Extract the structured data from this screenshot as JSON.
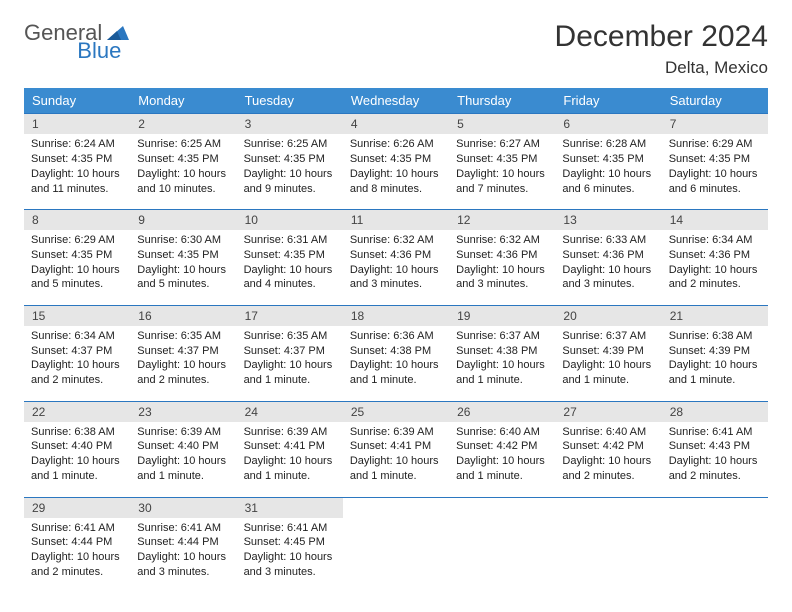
{
  "logo": {
    "text1": "General",
    "text2": "Blue"
  },
  "title": "December 2024",
  "location": "Delta, Mexico",
  "colors": {
    "header_bg": "#3a8bd0",
    "header_fg": "#ffffff",
    "daynum_bg": "#e6e6e6",
    "rule": "#2b77c0",
    "logo_blue": "#2b77c0",
    "text": "#222222",
    "page_bg": "#ffffff"
  },
  "typography": {
    "month_fontsize": 30,
    "location_fontsize": 17,
    "dayhdr_fontsize": 13,
    "daynum_fontsize": 12,
    "body_fontsize": 11
  },
  "day_headers": [
    "Sunday",
    "Monday",
    "Tuesday",
    "Wednesday",
    "Thursday",
    "Friday",
    "Saturday"
  ],
  "weeks": [
    [
      {
        "n": "1",
        "sunrise": "6:24 AM",
        "sunset": "4:35 PM",
        "daylight": "10 hours and 11 minutes."
      },
      {
        "n": "2",
        "sunrise": "6:25 AM",
        "sunset": "4:35 PM",
        "daylight": "10 hours and 10 minutes."
      },
      {
        "n": "3",
        "sunrise": "6:25 AM",
        "sunset": "4:35 PM",
        "daylight": "10 hours and 9 minutes."
      },
      {
        "n": "4",
        "sunrise": "6:26 AM",
        "sunset": "4:35 PM",
        "daylight": "10 hours and 8 minutes."
      },
      {
        "n": "5",
        "sunrise": "6:27 AM",
        "sunset": "4:35 PM",
        "daylight": "10 hours and 7 minutes."
      },
      {
        "n": "6",
        "sunrise": "6:28 AM",
        "sunset": "4:35 PM",
        "daylight": "10 hours and 6 minutes."
      },
      {
        "n": "7",
        "sunrise": "6:29 AM",
        "sunset": "4:35 PM",
        "daylight": "10 hours and 6 minutes."
      }
    ],
    [
      {
        "n": "8",
        "sunrise": "6:29 AM",
        "sunset": "4:35 PM",
        "daylight": "10 hours and 5 minutes."
      },
      {
        "n": "9",
        "sunrise": "6:30 AM",
        "sunset": "4:35 PM",
        "daylight": "10 hours and 5 minutes."
      },
      {
        "n": "10",
        "sunrise": "6:31 AM",
        "sunset": "4:35 PM",
        "daylight": "10 hours and 4 minutes."
      },
      {
        "n": "11",
        "sunrise": "6:32 AM",
        "sunset": "4:36 PM",
        "daylight": "10 hours and 3 minutes."
      },
      {
        "n": "12",
        "sunrise": "6:32 AM",
        "sunset": "4:36 PM",
        "daylight": "10 hours and 3 minutes."
      },
      {
        "n": "13",
        "sunrise": "6:33 AM",
        "sunset": "4:36 PM",
        "daylight": "10 hours and 3 minutes."
      },
      {
        "n": "14",
        "sunrise": "6:34 AM",
        "sunset": "4:36 PM",
        "daylight": "10 hours and 2 minutes."
      }
    ],
    [
      {
        "n": "15",
        "sunrise": "6:34 AM",
        "sunset": "4:37 PM",
        "daylight": "10 hours and 2 minutes."
      },
      {
        "n": "16",
        "sunrise": "6:35 AM",
        "sunset": "4:37 PM",
        "daylight": "10 hours and 2 minutes."
      },
      {
        "n": "17",
        "sunrise": "6:35 AM",
        "sunset": "4:37 PM",
        "daylight": "10 hours and 1 minute."
      },
      {
        "n": "18",
        "sunrise": "6:36 AM",
        "sunset": "4:38 PM",
        "daylight": "10 hours and 1 minute."
      },
      {
        "n": "19",
        "sunrise": "6:37 AM",
        "sunset": "4:38 PM",
        "daylight": "10 hours and 1 minute."
      },
      {
        "n": "20",
        "sunrise": "6:37 AM",
        "sunset": "4:39 PM",
        "daylight": "10 hours and 1 minute."
      },
      {
        "n": "21",
        "sunrise": "6:38 AM",
        "sunset": "4:39 PM",
        "daylight": "10 hours and 1 minute."
      }
    ],
    [
      {
        "n": "22",
        "sunrise": "6:38 AM",
        "sunset": "4:40 PM",
        "daylight": "10 hours and 1 minute."
      },
      {
        "n": "23",
        "sunrise": "6:39 AM",
        "sunset": "4:40 PM",
        "daylight": "10 hours and 1 minute."
      },
      {
        "n": "24",
        "sunrise": "6:39 AM",
        "sunset": "4:41 PM",
        "daylight": "10 hours and 1 minute."
      },
      {
        "n": "25",
        "sunrise": "6:39 AM",
        "sunset": "4:41 PM",
        "daylight": "10 hours and 1 minute."
      },
      {
        "n": "26",
        "sunrise": "6:40 AM",
        "sunset": "4:42 PM",
        "daylight": "10 hours and 1 minute."
      },
      {
        "n": "27",
        "sunrise": "6:40 AM",
        "sunset": "4:42 PM",
        "daylight": "10 hours and 2 minutes."
      },
      {
        "n": "28",
        "sunrise": "6:41 AM",
        "sunset": "4:43 PM",
        "daylight": "10 hours and 2 minutes."
      }
    ],
    [
      {
        "n": "29",
        "sunrise": "6:41 AM",
        "sunset": "4:44 PM",
        "daylight": "10 hours and 2 minutes."
      },
      {
        "n": "30",
        "sunrise": "6:41 AM",
        "sunset": "4:44 PM",
        "daylight": "10 hours and 3 minutes."
      },
      {
        "n": "31",
        "sunrise": "6:41 AM",
        "sunset": "4:45 PM",
        "daylight": "10 hours and 3 minutes."
      },
      null,
      null,
      null,
      null
    ]
  ],
  "labels": {
    "sunrise": "Sunrise:",
    "sunset": "Sunset:",
    "daylight": "Daylight:"
  }
}
